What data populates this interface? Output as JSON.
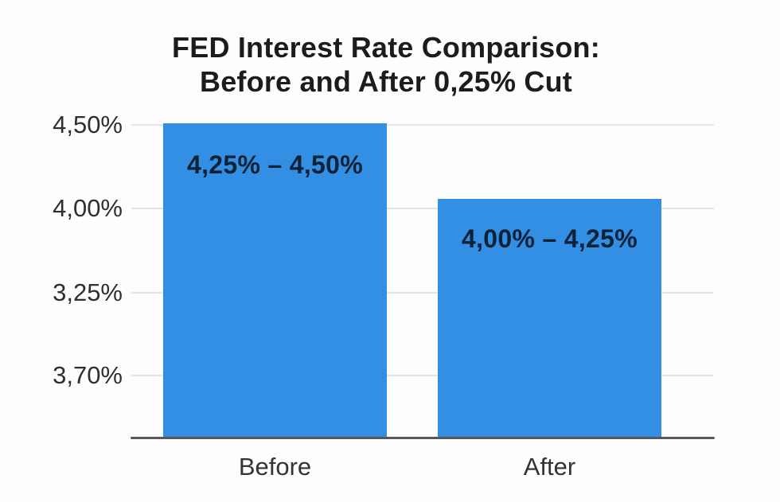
{
  "chart_data": {
    "type": "bar",
    "title": "FED Interest Rate Comparison: Before and After 0,25% Cut",
    "title_lines": [
      "FED Interest Rate Comparison:",
      "Before and After 0,25% Cut"
    ],
    "categories": [
      "Before",
      "After"
    ],
    "values": [
      4.5,
      4.25
    ],
    "bars": [
      {
        "category": "Before",
        "label": "4,25% – 4,50%",
        "range_low_pct": 4.25,
        "range_high_pct": 4.5
      },
      {
        "category": "After",
        "label": "4,00% – 4,25%",
        "range_low_pct": 4.0,
        "range_high_pct": 4.25
      }
    ],
    "ytick_labels_top_to_bottom": [
      "4,50%",
      "4,00%",
      "3,25%",
      "3,70%"
    ],
    "grid": true,
    "legend": "none",
    "colors": {
      "bar_fill": "#338fe3",
      "bar_label_text": "#0d2137",
      "title_text": "#1c1c1e",
      "tick_text": "#2f2f31",
      "gridline": "#e5e5e8",
      "axis_line": "#57585c",
      "background": "#fdfdfe"
    }
  }
}
